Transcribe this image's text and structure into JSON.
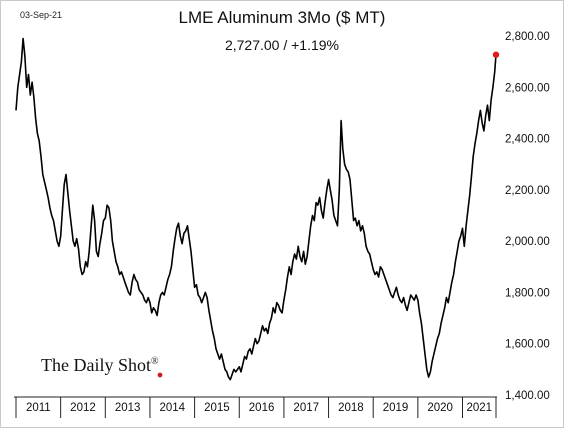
{
  "header": {
    "date": "03-Sep-21",
    "title": "LME Aluminum 3Mo ($ MT)",
    "subtitle": "2,727.00  /  +1.19%",
    "brand": "The Daily Shot",
    "brand_mark": "®"
  },
  "colors": {
    "line": "#000000",
    "last_point": "#e0191c",
    "brand_dot": "#cc2020"
  },
  "chart_data": {
    "type": "line",
    "title": "LME Aluminum 3Mo ($ MT)",
    "xlabel": "",
    "ylabel": "",
    "x_tick_labels": [
      "2011",
      "2012",
      "2013",
      "2014",
      "2015",
      "2016",
      "2017",
      "2018",
      "2019",
      "2020",
      "2021"
    ],
    "y_tick_labels": [
      "1,400.00",
      "1,600.00",
      "1,800.00",
      "2,000.00",
      "2,200.00",
      "2,400.00",
      "2,600.00",
      "2,800.00"
    ],
    "y_ticks": [
      1400,
      1600,
      1800,
      2000,
      2200,
      2400,
      2600,
      2800
    ],
    "ylim": [
      1400,
      2820
    ],
    "xlim": [
      2011.0,
      2021.75
    ],
    "y_axis_side": "right",
    "grid": false,
    "last_value": 2727.0,
    "change": "+1.19%",
    "series": [
      {
        "points": [
          [
            2011.0,
            2510
          ],
          [
            2011.04,
            2600
          ],
          [
            2011.08,
            2650
          ],
          [
            2011.12,
            2700
          ],
          [
            2011.16,
            2790
          ],
          [
            2011.2,
            2720
          ],
          [
            2011.24,
            2600
          ],
          [
            2011.28,
            2650
          ],
          [
            2011.32,
            2570
          ],
          [
            2011.36,
            2620
          ],
          [
            2011.4,
            2560
          ],
          [
            2011.44,
            2480
          ],
          [
            2011.48,
            2420
          ],
          [
            2011.52,
            2390
          ],
          [
            2011.56,
            2330
          ],
          [
            2011.6,
            2260
          ],
          [
            2011.64,
            2230
          ],
          [
            2011.68,
            2200
          ],
          [
            2011.72,
            2170
          ],
          [
            2011.76,
            2130
          ],
          [
            2011.8,
            2100
          ],
          [
            2011.84,
            2080
          ],
          [
            2011.88,
            2040
          ],
          [
            2011.92,
            2000
          ],
          [
            2011.96,
            1980
          ],
          [
            2012.0,
            2020
          ],
          [
            2012.04,
            2120
          ],
          [
            2012.08,
            2220
          ],
          [
            2012.12,
            2260
          ],
          [
            2012.16,
            2190
          ],
          [
            2012.2,
            2120
          ],
          [
            2012.24,
            2060
          ],
          [
            2012.28,
            2000
          ],
          [
            2012.32,
            1980
          ],
          [
            2012.36,
            2010
          ],
          [
            2012.4,
            1970
          ],
          [
            2012.44,
            1900
          ],
          [
            2012.48,
            1870
          ],
          [
            2012.52,
            1880
          ],
          [
            2012.56,
            1920
          ],
          [
            2012.6,
            1900
          ],
          [
            2012.64,
            1960
          ],
          [
            2012.68,
            2050
          ],
          [
            2012.72,
            2140
          ],
          [
            2012.76,
            2080
          ],
          [
            2012.8,
            1960
          ],
          [
            2012.84,
            1940
          ],
          [
            2012.88,
            1990
          ],
          [
            2012.92,
            2030
          ],
          [
            2012.96,
            2080
          ],
          [
            2013.0,
            2090
          ],
          [
            2013.04,
            2140
          ],
          [
            2013.08,
            2130
          ],
          [
            2013.12,
            2080
          ],
          [
            2013.16,
            2000
          ],
          [
            2013.2,
            1960
          ],
          [
            2013.24,
            1920
          ],
          [
            2013.28,
            1900
          ],
          [
            2013.32,
            1870
          ],
          [
            2013.36,
            1880
          ],
          [
            2013.4,
            1860
          ],
          [
            2013.44,
            1840
          ],
          [
            2013.48,
            1820
          ],
          [
            2013.52,
            1800
          ],
          [
            2013.56,
            1790
          ],
          [
            2013.6,
            1840
          ],
          [
            2013.64,
            1870
          ],
          [
            2013.68,
            1850
          ],
          [
            2013.72,
            1840
          ],
          [
            2013.76,
            1810
          ],
          [
            2013.8,
            1800
          ],
          [
            2013.84,
            1790
          ],
          [
            2013.88,
            1770
          ],
          [
            2013.92,
            1760
          ],
          [
            2013.96,
            1780
          ],
          [
            2014.0,
            1760
          ],
          [
            2014.04,
            1720
          ],
          [
            2014.08,
            1740
          ],
          [
            2014.12,
            1730
          ],
          [
            2014.16,
            1710
          ],
          [
            2014.2,
            1760
          ],
          [
            2014.24,
            1790
          ],
          [
            2014.28,
            1800
          ],
          [
            2014.32,
            1790
          ],
          [
            2014.36,
            1820
          ],
          [
            2014.4,
            1850
          ],
          [
            2014.44,
            1870
          ],
          [
            2014.48,
            1900
          ],
          [
            2014.52,
            1960
          ],
          [
            2014.56,
            2010
          ],
          [
            2014.6,
            2050
          ],
          [
            2014.64,
            2070
          ],
          [
            2014.68,
            2020
          ],
          [
            2014.72,
            1990
          ],
          [
            2014.76,
            2030
          ],
          [
            2014.8,
            2040
          ],
          [
            2014.84,
            2060
          ],
          [
            2014.88,
            2010
          ],
          [
            2014.92,
            1960
          ],
          [
            2014.96,
            1890
          ],
          [
            2015.0,
            1820
          ],
          [
            2015.04,
            1830
          ],
          [
            2015.08,
            1790
          ],
          [
            2015.12,
            1780
          ],
          [
            2015.16,
            1760
          ],
          [
            2015.2,
            1780
          ],
          [
            2015.24,
            1800
          ],
          [
            2015.28,
            1780
          ],
          [
            2015.32,
            1730
          ],
          [
            2015.36,
            1690
          ],
          [
            2015.4,
            1650
          ],
          [
            2015.44,
            1620
          ],
          [
            2015.48,
            1580
          ],
          [
            2015.52,
            1560
          ],
          [
            2015.56,
            1540
          ],
          [
            2015.6,
            1560
          ],
          [
            2015.64,
            1530
          ],
          [
            2015.68,
            1500
          ],
          [
            2015.72,
            1490
          ],
          [
            2015.76,
            1470
          ],
          [
            2015.8,
            1460
          ],
          [
            2015.84,
            1480
          ],
          [
            2015.88,
            1500
          ],
          [
            2015.92,
            1490
          ],
          [
            2015.96,
            1500
          ],
          [
            2016.0,
            1510
          ],
          [
            2016.04,
            1490
          ],
          [
            2016.08,
            1520
          ],
          [
            2016.12,
            1550
          ],
          [
            2016.16,
            1540
          ],
          [
            2016.2,
            1570
          ],
          [
            2016.24,
            1580
          ],
          [
            2016.28,
            1560
          ],
          [
            2016.32,
            1590
          ],
          [
            2016.36,
            1620
          ],
          [
            2016.4,
            1600
          ],
          [
            2016.44,
            1610
          ],
          [
            2016.48,
            1640
          ],
          [
            2016.52,
            1670
          ],
          [
            2016.56,
            1650
          ],
          [
            2016.6,
            1660
          ],
          [
            2016.64,
            1640
          ],
          [
            2016.68,
            1680
          ],
          [
            2016.72,
            1700
          ],
          [
            2016.76,
            1740
          ],
          [
            2016.8,
            1720
          ],
          [
            2016.84,
            1760
          ],
          [
            2016.88,
            1750
          ],
          [
            2016.92,
            1730
          ],
          [
            2016.96,
            1720
          ],
          [
            2017.0,
            1770
          ],
          [
            2017.04,
            1810
          ],
          [
            2017.08,
            1860
          ],
          [
            2017.12,
            1900
          ],
          [
            2017.16,
            1870
          ],
          [
            2017.2,
            1920
          ],
          [
            2017.24,
            1950
          ],
          [
            2017.28,
            1930
          ],
          [
            2017.32,
            1980
          ],
          [
            2017.36,
            1940
          ],
          [
            2017.4,
            1920
          ],
          [
            2017.44,
            1960
          ],
          [
            2017.48,
            1910
          ],
          [
            2017.52,
            1940
          ],
          [
            2017.56,
            2000
          ],
          [
            2017.6,
            2060
          ],
          [
            2017.64,
            2100
          ],
          [
            2017.68,
            2080
          ],
          [
            2017.72,
            2150
          ],
          [
            2017.76,
            2140
          ],
          [
            2017.8,
            2170
          ],
          [
            2017.84,
            2120
          ],
          [
            2017.88,
            2090
          ],
          [
            2017.92,
            2150
          ],
          [
            2017.96,
            2200
          ],
          [
            2018.0,
            2240
          ],
          [
            2018.04,
            2200
          ],
          [
            2018.08,
            2160
          ],
          [
            2018.12,
            2100
          ],
          [
            2018.16,
            2080
          ],
          [
            2018.2,
            2060
          ],
          [
            2018.24,
            2200
          ],
          [
            2018.28,
            2470
          ],
          [
            2018.32,
            2360
          ],
          [
            2018.36,
            2300
          ],
          [
            2018.4,
            2280
          ],
          [
            2018.44,
            2270
          ],
          [
            2018.48,
            2240
          ],
          [
            2018.52,
            2160
          ],
          [
            2018.56,
            2080
          ],
          [
            2018.6,
            2090
          ],
          [
            2018.64,
            2060
          ],
          [
            2018.68,
            2080
          ],
          [
            2018.72,
            2040
          ],
          [
            2018.76,
            2060
          ],
          [
            2018.8,
            2030
          ],
          [
            2018.84,
            1980
          ],
          [
            2018.88,
            1960
          ],
          [
            2018.92,
            1950
          ],
          [
            2018.96,
            1920
          ],
          [
            2019.0,
            1890
          ],
          [
            2019.04,
            1870
          ],
          [
            2019.08,
            1880
          ],
          [
            2019.12,
            1860
          ],
          [
            2019.16,
            1900
          ],
          [
            2019.2,
            1890
          ],
          [
            2019.24,
            1870
          ],
          [
            2019.28,
            1850
          ],
          [
            2019.32,
            1830
          ],
          [
            2019.36,
            1810
          ],
          [
            2019.4,
            1790
          ],
          [
            2019.44,
            1780
          ],
          [
            2019.48,
            1800
          ],
          [
            2019.52,
            1820
          ],
          [
            2019.56,
            1790
          ],
          [
            2019.6,
            1770
          ],
          [
            2019.64,
            1760
          ],
          [
            2019.68,
            1780
          ],
          [
            2019.72,
            1750
          ],
          [
            2019.76,
            1730
          ],
          [
            2019.8,
            1760
          ],
          [
            2019.84,
            1790
          ],
          [
            2019.88,
            1780
          ],
          [
            2019.92,
            1770
          ],
          [
            2019.96,
            1790
          ],
          [
            2020.0,
            1770
          ],
          [
            2020.04,
            1720
          ],
          [
            2020.08,
            1680
          ],
          [
            2020.12,
            1620
          ],
          [
            2020.16,
            1560
          ],
          [
            2020.2,
            1500
          ],
          [
            2020.24,
            1470
          ],
          [
            2020.28,
            1490
          ],
          [
            2020.32,
            1530
          ],
          [
            2020.36,
            1560
          ],
          [
            2020.4,
            1590
          ],
          [
            2020.44,
            1620
          ],
          [
            2020.48,
            1640
          ],
          [
            2020.52,
            1680
          ],
          [
            2020.56,
            1710
          ],
          [
            2020.6,
            1740
          ],
          [
            2020.64,
            1780
          ],
          [
            2020.68,
            1760
          ],
          [
            2020.72,
            1800
          ],
          [
            2020.76,
            1840
          ],
          [
            2020.8,
            1870
          ],
          [
            2020.84,
            1920
          ],
          [
            2020.88,
            1960
          ],
          [
            2020.92,
            2000
          ],
          [
            2020.96,
            2020
          ],
          [
            2021.0,
            2050
          ],
          [
            2021.04,
            1980
          ],
          [
            2021.08,
            2060
          ],
          [
            2021.12,
            2120
          ],
          [
            2021.16,
            2180
          ],
          [
            2021.2,
            2250
          ],
          [
            2021.24,
            2330
          ],
          [
            2021.28,
            2380
          ],
          [
            2021.32,
            2420
          ],
          [
            2021.36,
            2470
          ],
          [
            2021.4,
            2510
          ],
          [
            2021.44,
            2460
          ],
          [
            2021.48,
            2430
          ],
          [
            2021.52,
            2490
          ],
          [
            2021.56,
            2530
          ],
          [
            2021.6,
            2470
          ],
          [
            2021.64,
            2550
          ],
          [
            2021.68,
            2600
          ],
          [
            2021.72,
            2660
          ],
          [
            2021.75,
            2727
          ]
        ]
      }
    ]
  }
}
